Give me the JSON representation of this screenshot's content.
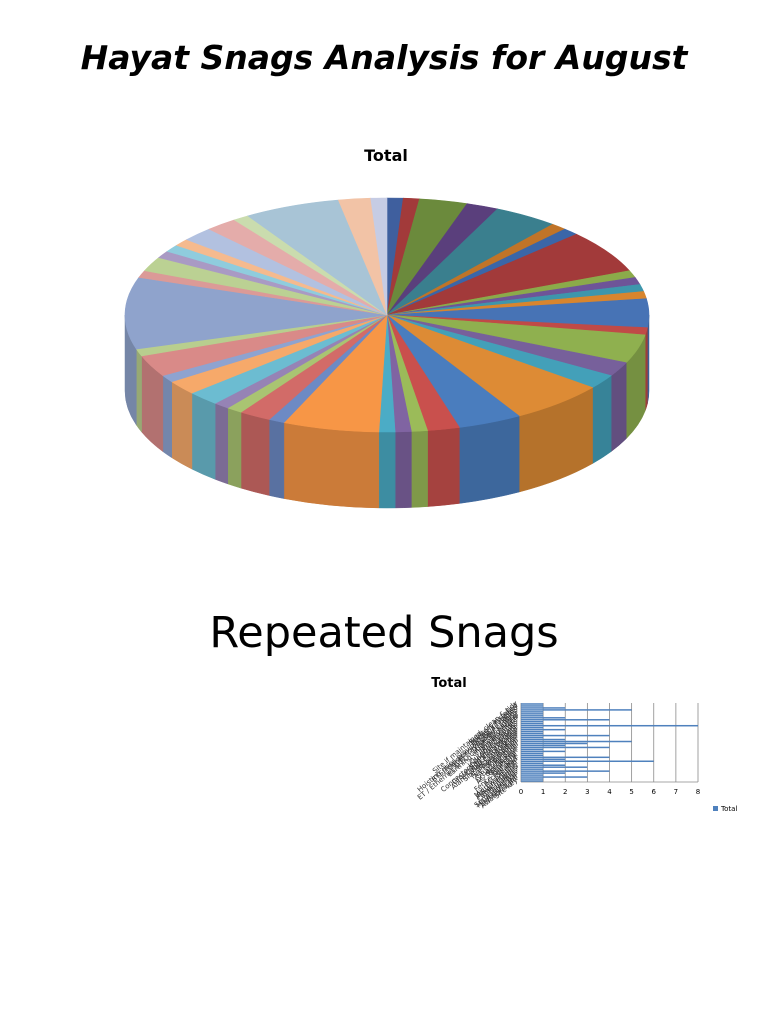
{
  "slide": {
    "title": "Hayat Snags Analysis for August",
    "section_title": "Repeated Snags"
  },
  "chart_data": [
    {
      "type": "pie",
      "title": "Total",
      "style": "3d",
      "legend": "none",
      "values": [
        1,
        1,
        3,
        2,
        4,
        1,
        1,
        6,
        1,
        1,
        1,
        1,
        4,
        1,
        4,
        2,
        2,
        6,
        4,
        2,
        1,
        1,
        1,
        6,
        1,
        2,
        1,
        1,
        2,
        2,
        1,
        3,
        1,
        10,
        1,
        2,
        1,
        1,
        1,
        2,
        2,
        1,
        6,
        2,
        1
      ],
      "colors": [
        "#3F5F9E",
        "#A23A3A",
        "#6B8A3C",
        "#5A3F7C",
        "#3A7F8E",
        "#C07428",
        "#3A66A8",
        "#A23A3A",
        "#8BAA4A",
        "#6E5498",
        "#3E96AC",
        "#D8852E",
        "#4773B5",
        "#C04A47",
        "#8FB04F",
        "#77609B",
        "#43A0B9",
        "#DD8B35",
        "#4A7DBE",
        "#C9504D",
        "#9BBB59",
        "#8064A2",
        "#4BACC6",
        "#F79646",
        "#6D8AC4",
        "#D26B68",
        "#A9C472",
        "#9683B5",
        "#6CBCD1",
        "#F6A96A",
        "#8EA3D0",
        "#D98A88",
        "#B8CE8E",
        "#8FA3CC",
        "#DB9A97",
        "#BBD193",
        "#A99AC4",
        "#8FCCDD",
        "#F5BA8E",
        "#B2C1E0",
        "#E4ACAA",
        "#CADCAE",
        "#A8C4D6",
        "#F2C3A6",
        "#C6CCE4"
      ]
    },
    {
      "type": "bar",
      "orientation": "horizontal",
      "title": "Total",
      "legend": "right",
      "series": [
        {
          "name": "Total"
        }
      ],
      "xlim": [
        0,
        8
      ],
      "xticks": [
        "0",
        "1",
        "2",
        "3",
        "4",
        "5",
        "6",
        "7",
        "8"
      ],
      "values": [
        1,
        1,
        2,
        5,
        1,
        1,
        1,
        2,
        4,
        1,
        1,
        8,
        1,
        2,
        1,
        1,
        4,
        1,
        2,
        5,
        3,
        2,
        4,
        1,
        2,
        1,
        1,
        4,
        2,
        6,
        1,
        2,
        3,
        1,
        4,
        2,
        1,
        3,
        1,
        1
      ],
      "categories": [
        "Site if maintained, clean & tidy",
        "Splitters installed",
        "Properly labelled",
        "Hoisting grips provided for all cables",
        "BTS/Transmission power cables",
        "Cable tray/ladder cabling",
        "Feeder routing",
        "ET / Ethernet & FO cables, protected",
        "Earthing of all equipment",
        "Jumper cables",
        "Antenna tilts",
        "Outdoor cabinets",
        "Indoor equipment",
        "Connectors weatherproofed",
        "Grounding kits installed",
        "Cable entry sealed",
        "Alarm cables connected",
        "Site documentation",
        "Tower lighting",
        "Fire extinguisher",
        "Air conditioning",
        "Rectifier",
        "Battery bank",
        "DC distribution",
        "AC distribution",
        "Generator",
        "Fuel tank",
        "Fence and gate",
        "Access road",
        "Shelter",
        "Microwave dish",
        "RRU mounting",
        "Feeder clamps",
        "Cable markers",
        "Drip loops",
        "Surge arresters",
        "Main earth bar",
        "Lightning rod",
        "Aviation light",
        "Site key"
      ]
    }
  ]
}
